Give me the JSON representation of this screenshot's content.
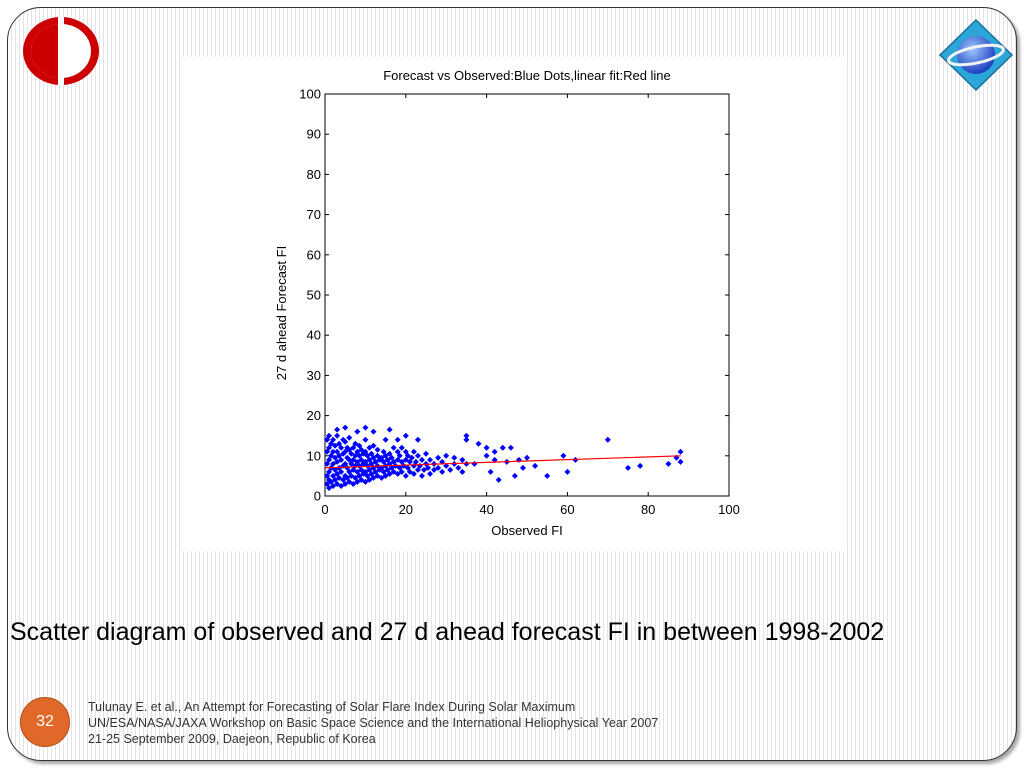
{
  "slide": {
    "caption": "Scatter diagram of observed and 27 d ahead forecast FI in between 1998-2002",
    "page_number": "32",
    "reference_lines": [
      "Tulunay E. et al., An Attempt for Forecasting of Solar Flare Index During Solar Maximum",
      "UN/ESA/NASA/JAXA Workshop on Basic Space Science and the International Heliophysical Year 2007",
      "21-25 September 2009, Daejeon, Republic of Korea"
    ],
    "colors": {
      "page_number_circle": "#e0692a",
      "logo_left": "#cc0000",
      "logo_right": "#3a6fd6"
    },
    "icons": {
      "left_logo": "university-logo-icon",
      "right_logo": "workshop-logo-icon"
    }
  },
  "chart_data": {
    "type": "scatter",
    "title": "Forecast vs Observed:Blue Dots,linear fit:Red line",
    "xlabel": "Observed FI",
    "ylabel": "27 d ahead Forecast FI",
    "xlim": [
      0,
      100
    ],
    "ylim": [
      0,
      100
    ],
    "xticks": [
      0,
      20,
      40,
      60,
      80,
      100
    ],
    "yticks": [
      0,
      10,
      20,
      30,
      40,
      50,
      60,
      70,
      80,
      90,
      100
    ],
    "grid": false,
    "series": [
      {
        "kind": "points",
        "color": "#0000ff",
        "points": [
          [
            0.5,
            3
          ],
          [
            0.5,
            5
          ],
          [
            0.5,
            8
          ],
          [
            0.5,
            11
          ],
          [
            0.5,
            14
          ],
          [
            1,
            2
          ],
          [
            1,
            4
          ],
          [
            1,
            6
          ],
          [
            1,
            9
          ],
          [
            1,
            12
          ],
          [
            1,
            15
          ],
          [
            1.5,
            3.5
          ],
          [
            1.5,
            7
          ],
          [
            1.5,
            10
          ],
          [
            1.5,
            13
          ],
          [
            2,
            2.5
          ],
          [
            2,
            5
          ],
          [
            2,
            8
          ],
          [
            2,
            11
          ],
          [
            2,
            14
          ],
          [
            2.5,
            4
          ],
          [
            2.5,
            6.5
          ],
          [
            2.5,
            9.5
          ],
          [
            2.5,
            12.5
          ],
          [
            3,
            3
          ],
          [
            3,
            5.5
          ],
          [
            3,
            8.5
          ],
          [
            3,
            11
          ],
          [
            3,
            15
          ],
          [
            3.5,
            4.5
          ],
          [
            3.5,
            7
          ],
          [
            3.5,
            10
          ],
          [
            3.5,
            13
          ],
          [
            4,
            2.5
          ],
          [
            4,
            6
          ],
          [
            4,
            9
          ],
          [
            4,
            12
          ],
          [
            4.5,
            4
          ],
          [
            4.5,
            7.5
          ],
          [
            4.5,
            10.5
          ],
          [
            4.5,
            14
          ],
          [
            5,
            3
          ],
          [
            5,
            5
          ],
          [
            5,
            8
          ],
          [
            5,
            11
          ],
          [
            5,
            13.5
          ],
          [
            5.5,
            4.5
          ],
          [
            5.5,
            7
          ],
          [
            5.5,
            9.5
          ],
          [
            5.5,
            12
          ],
          [
            6,
            3.5
          ],
          [
            6,
            6
          ],
          [
            6,
            9
          ],
          [
            6,
            11.5
          ],
          [
            6,
            14.5
          ],
          [
            6.5,
            5
          ],
          [
            6.5,
            8
          ],
          [
            6.5,
            10.5
          ],
          [
            7,
            3
          ],
          [
            7,
            6.5
          ],
          [
            7,
            9
          ],
          [
            7,
            12
          ],
          [
            7.5,
            4.5
          ],
          [
            7.5,
            7.5
          ],
          [
            7.5,
            10
          ],
          [
            7.5,
            13
          ],
          [
            8,
            3.5
          ],
          [
            8,
            6
          ],
          [
            8,
            8.5
          ],
          [
            8,
            11
          ],
          [
            8.5,
            5
          ],
          [
            8.5,
            7.5
          ],
          [
            8.5,
            10
          ],
          [
            8.5,
            12.5
          ],
          [
            9,
            4
          ],
          [
            9,
            6.5
          ],
          [
            9,
            9
          ],
          [
            9,
            11.5
          ],
          [
            9.5,
            5.5
          ],
          [
            9.5,
            8
          ],
          [
            9.5,
            10.5
          ],
          [
            10,
            3.5
          ],
          [
            10,
            6
          ],
          [
            10,
            8.5
          ],
          [
            10,
            11
          ],
          [
            10,
            14
          ],
          [
            10.5,
            5
          ],
          [
            10.5,
            7.5
          ],
          [
            10.5,
            10
          ],
          [
            11,
            4
          ],
          [
            11,
            6.5
          ],
          [
            11,
            9
          ],
          [
            11,
            12
          ],
          [
            11.5,
            5.5
          ],
          [
            11.5,
            8
          ],
          [
            11.5,
            10.5
          ],
          [
            12,
            4.5
          ],
          [
            12,
            7
          ],
          [
            12,
            9.5
          ],
          [
            12,
            12.5
          ],
          [
            12.5,
            6
          ],
          [
            12.5,
            8.5
          ],
          [
            13,
            5
          ],
          [
            13,
            7.5
          ],
          [
            13,
            10
          ],
          [
            13,
            11.5
          ],
          [
            13.5,
            6.5
          ],
          [
            13.5,
            9
          ],
          [
            14,
            4.5
          ],
          [
            14,
            7
          ],
          [
            14,
            9.5
          ],
          [
            14.5,
            6
          ],
          [
            14.5,
            8.5
          ],
          [
            14.5,
            11
          ],
          [
            15,
            5
          ],
          [
            15,
            7.5
          ],
          [
            15,
            10
          ],
          [
            15.5,
            6.5
          ],
          [
            15.5,
            9
          ],
          [
            16,
            5.5
          ],
          [
            16,
            8
          ],
          [
            16,
            10.5
          ],
          [
            16.5,
            7
          ],
          [
            16.5,
            9.5
          ],
          [
            17,
            6
          ],
          [
            17,
            8.5
          ],
          [
            17,
            12
          ],
          [
            17.5,
            7.5
          ],
          [
            18,
            5.5
          ],
          [
            18,
            9
          ],
          [
            18,
            11
          ],
          [
            18.5,
            7
          ],
          [
            18.5,
            10
          ],
          [
            19,
            6
          ],
          [
            19,
            8.5
          ],
          [
            19,
            12
          ],
          [
            19.5,
            7.5
          ],
          [
            20,
            5
          ],
          [
            20,
            9
          ],
          [
            20,
            11
          ],
          [
            20.5,
            7
          ],
          [
            20.5,
            10
          ],
          [
            21,
            6
          ],
          [
            21,
            8.5
          ],
          [
            21.5,
            9.5
          ],
          [
            22,
            5.5
          ],
          [
            22,
            7.5
          ],
          [
            22,
            11
          ],
          [
            22.5,
            8.5
          ],
          [
            23,
            6.5
          ],
          [
            23,
            10
          ],
          [
            23.5,
            7.5
          ],
          [
            24,
            5
          ],
          [
            24,
            9
          ],
          [
            24.5,
            6.5
          ],
          [
            25,
            8
          ],
          [
            25,
            10.5
          ],
          [
            25.5,
            7
          ],
          [
            26,
            5.5
          ],
          [
            26,
            9
          ],
          [
            27,
            6.5
          ],
          [
            27,
            8
          ],
          [
            28,
            7
          ],
          [
            28,
            9.5
          ],
          [
            29,
            6
          ],
          [
            29,
            8.5
          ],
          [
            30,
            7.5
          ],
          [
            30,
            10
          ],
          [
            31,
            6.5
          ],
          [
            32,
            8
          ],
          [
            32,
            9.5
          ],
          [
            33,
            7
          ],
          [
            34,
            6
          ],
          [
            34,
            9
          ],
          [
            35,
            8
          ],
          [
            16,
            16.5
          ],
          [
            10,
            17
          ],
          [
            8,
            16
          ],
          [
            5,
            17
          ],
          [
            3,
            16.5
          ],
          [
            12,
            16
          ],
          [
            15,
            14
          ],
          [
            18,
            14
          ],
          [
            20,
            15
          ],
          [
            23,
            14
          ],
          [
            35,
            14
          ],
          [
            35,
            15
          ],
          [
            38,
            13
          ],
          [
            40,
            10
          ],
          [
            40,
            12
          ],
          [
            42,
            9
          ],
          [
            42,
            11
          ],
          [
            44,
            12
          ],
          [
            45,
            8.5
          ],
          [
            46,
            12
          ],
          [
            48,
            9
          ],
          [
            49,
            7
          ],
          [
            50,
            9.5
          ],
          [
            52,
            7.5
          ],
          [
            55,
            5
          ],
          [
            59,
            10
          ],
          [
            60,
            6
          ],
          [
            62,
            9
          ],
          [
            70,
            14
          ],
          [
            75,
            7
          ],
          [
            78,
            7.5
          ],
          [
            85,
            8
          ],
          [
            87,
            9.5
          ],
          [
            88,
            11
          ],
          [
            88,
            8.5
          ],
          [
            41,
            6
          ],
          [
            43,
            4
          ],
          [
            47,
            5
          ],
          [
            37,
            8
          ]
        ]
      },
      {
        "kind": "fit_line",
        "color": "#ff0000",
        "x": [
          0,
          88
        ],
        "y": [
          7,
          10
        ]
      }
    ]
  }
}
